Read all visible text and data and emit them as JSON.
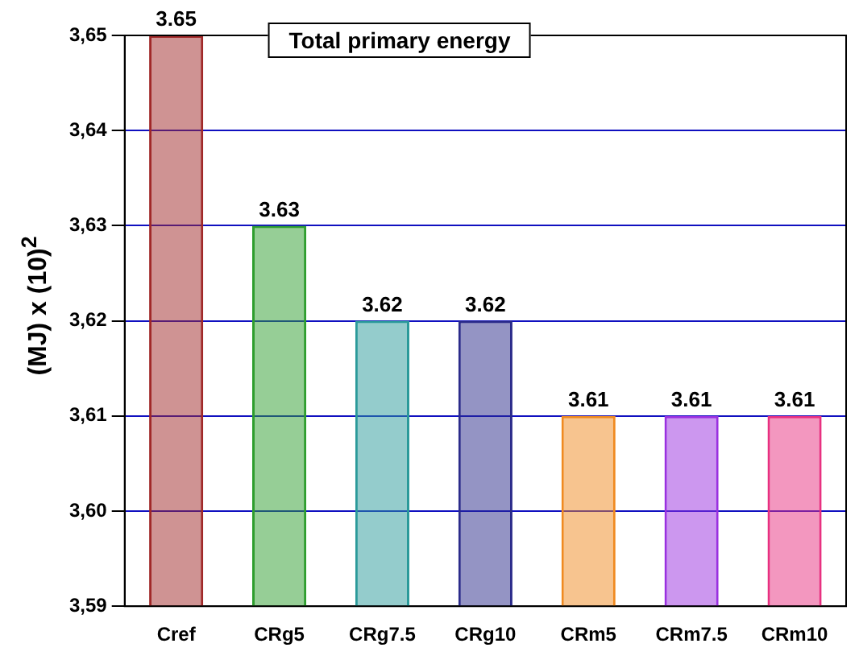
{
  "chart_data": {
    "type": "bar",
    "title": "Total primary energy",
    "ylabel": "(MJ) x (10)$^{2}$",
    "categories": [
      "Cref",
      "CRg5",
      "CRg7.5",
      "CRg10",
      "CRm5",
      "CRm7.5",
      "CRm10"
    ],
    "values": [
      3.65,
      3.63,
      3.62,
      3.62,
      3.61,
      3.61,
      3.61
    ],
    "colors": [
      "#a02828",
      "#2e9e2e",
      "#2a9a9a",
      "#2a2a8a",
      "#f08a20",
      "#9a30e0",
      "#e83080"
    ],
    "ylim": [
      3.59,
      3.65
    ],
    "yticks": [
      {
        "value": 3.59,
        "label": "3,59"
      },
      {
        "value": 3.6,
        "label": "3,60"
      },
      {
        "value": 3.61,
        "label": "3,61"
      },
      {
        "value": 3.62,
        "label": "3,62"
      },
      {
        "value": 3.63,
        "label": "3,63"
      },
      {
        "value": 3.64,
        "label": "3,64"
      },
      {
        "value": 3.65,
        "label": "3,65"
      }
    ],
    "grid": "y",
    "data_labels": true
  }
}
